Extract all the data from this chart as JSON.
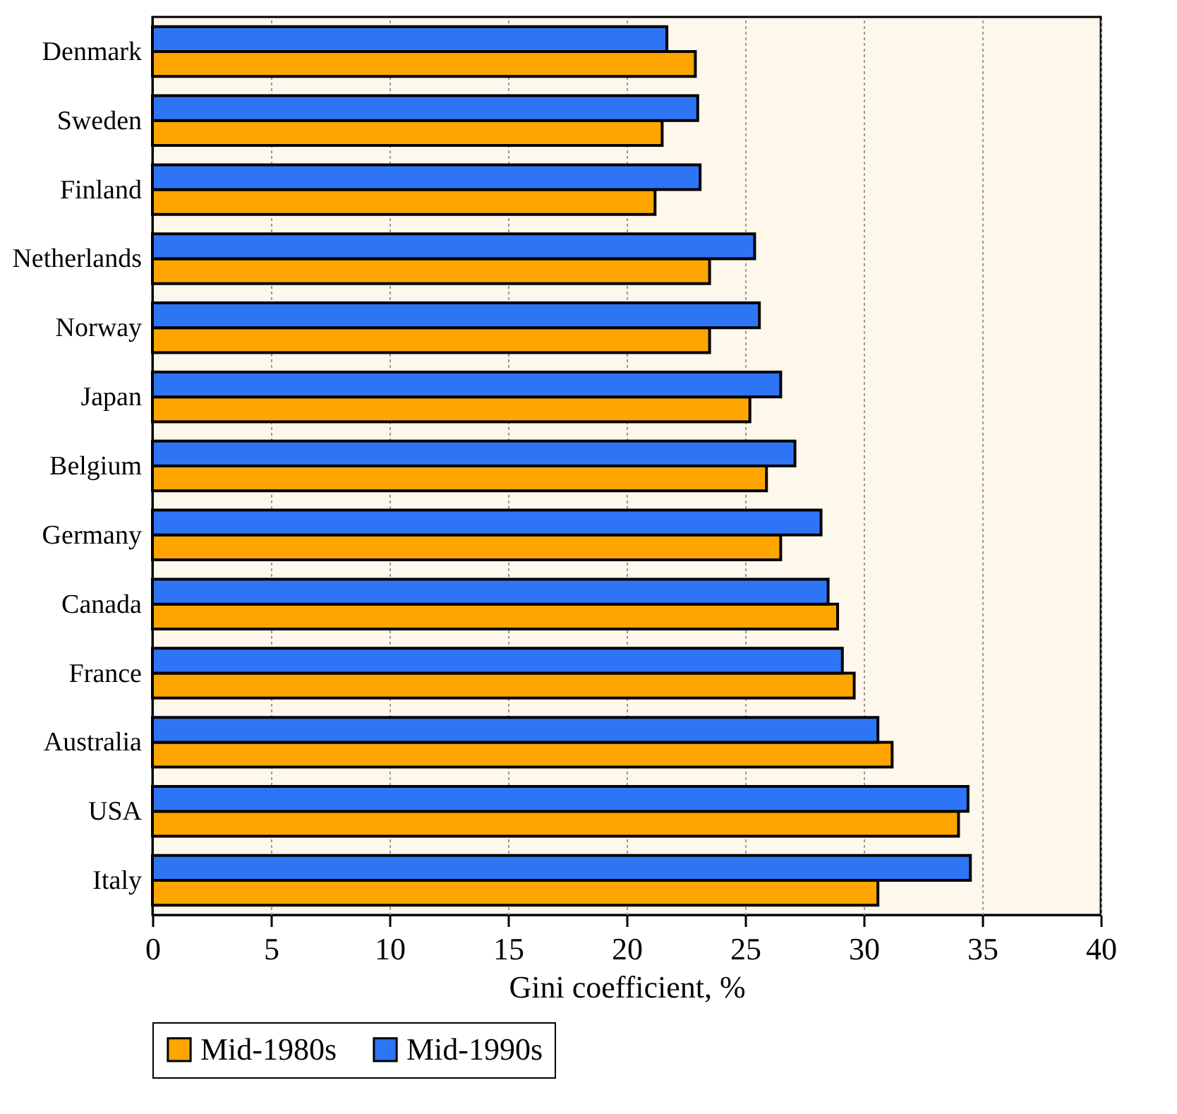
{
  "chart_data": {
    "type": "bar",
    "orientation": "horizontal",
    "xlabel": "Gini coefficient, %",
    "categories": [
      "Denmark",
      "Sweden",
      "Finland",
      "Netherlands",
      "Norway",
      "Japan",
      "Belgium",
      "Germany",
      "Canada",
      "France",
      "Australia",
      "USA",
      "Italy"
    ],
    "series": [
      {
        "name": "Mid-1980s",
        "color": "#ffa500",
        "values": [
          22.9,
          21.5,
          21.2,
          23.5,
          23.5,
          25.2,
          25.9,
          26.5,
          28.9,
          29.6,
          31.2,
          34.0,
          30.6
        ]
      },
      {
        "name": "Mid-1990s",
        "color": "#2e75f6",
        "values": [
          21.7,
          23.0,
          23.1,
          25.4,
          25.6,
          26.5,
          27.1,
          28.2,
          28.5,
          29.1,
          30.6,
          34.4,
          34.5
        ]
      }
    ],
    "xlim": [
      0,
      40
    ],
    "xticks": [
      0,
      5,
      10,
      15,
      20,
      25,
      30,
      35,
      40
    ],
    "grid": "x",
    "legend": "bottom"
  }
}
